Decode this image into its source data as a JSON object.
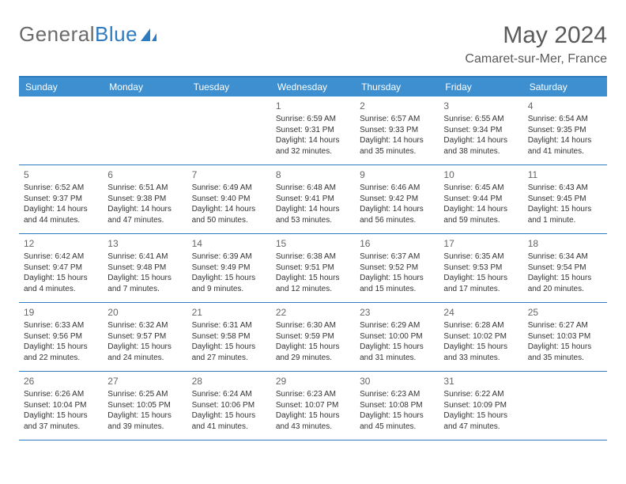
{
  "brand": {
    "part1": "General",
    "part2": "Blue"
  },
  "title": "May 2024",
  "subtitle": "Camaret-sur-Mer, France",
  "accent_color": "#3d8fcf",
  "border_color": "#2f7bbf",
  "day_headers": [
    "Sunday",
    "Monday",
    "Tuesday",
    "Wednesday",
    "Thursday",
    "Friday",
    "Saturday"
  ],
  "weeks": [
    [
      null,
      null,
      null,
      {
        "d": "1",
        "sr": "Sunrise: 6:59 AM",
        "ss": "Sunset: 9:31 PM",
        "dl1": "Daylight: 14 hours",
        "dl2": "and 32 minutes."
      },
      {
        "d": "2",
        "sr": "Sunrise: 6:57 AM",
        "ss": "Sunset: 9:33 PM",
        "dl1": "Daylight: 14 hours",
        "dl2": "and 35 minutes."
      },
      {
        "d": "3",
        "sr": "Sunrise: 6:55 AM",
        "ss": "Sunset: 9:34 PM",
        "dl1": "Daylight: 14 hours",
        "dl2": "and 38 minutes."
      },
      {
        "d": "4",
        "sr": "Sunrise: 6:54 AM",
        "ss": "Sunset: 9:35 PM",
        "dl1": "Daylight: 14 hours",
        "dl2": "and 41 minutes."
      }
    ],
    [
      {
        "d": "5",
        "sr": "Sunrise: 6:52 AM",
        "ss": "Sunset: 9:37 PM",
        "dl1": "Daylight: 14 hours",
        "dl2": "and 44 minutes."
      },
      {
        "d": "6",
        "sr": "Sunrise: 6:51 AM",
        "ss": "Sunset: 9:38 PM",
        "dl1": "Daylight: 14 hours",
        "dl2": "and 47 minutes."
      },
      {
        "d": "7",
        "sr": "Sunrise: 6:49 AM",
        "ss": "Sunset: 9:40 PM",
        "dl1": "Daylight: 14 hours",
        "dl2": "and 50 minutes."
      },
      {
        "d": "8",
        "sr": "Sunrise: 6:48 AM",
        "ss": "Sunset: 9:41 PM",
        "dl1": "Daylight: 14 hours",
        "dl2": "and 53 minutes."
      },
      {
        "d": "9",
        "sr": "Sunrise: 6:46 AM",
        "ss": "Sunset: 9:42 PM",
        "dl1": "Daylight: 14 hours",
        "dl2": "and 56 minutes."
      },
      {
        "d": "10",
        "sr": "Sunrise: 6:45 AM",
        "ss": "Sunset: 9:44 PM",
        "dl1": "Daylight: 14 hours",
        "dl2": "and 59 minutes."
      },
      {
        "d": "11",
        "sr": "Sunrise: 6:43 AM",
        "ss": "Sunset: 9:45 PM",
        "dl1": "Daylight: 15 hours",
        "dl2": "and 1 minute."
      }
    ],
    [
      {
        "d": "12",
        "sr": "Sunrise: 6:42 AM",
        "ss": "Sunset: 9:47 PM",
        "dl1": "Daylight: 15 hours",
        "dl2": "and 4 minutes."
      },
      {
        "d": "13",
        "sr": "Sunrise: 6:41 AM",
        "ss": "Sunset: 9:48 PM",
        "dl1": "Daylight: 15 hours",
        "dl2": "and 7 minutes."
      },
      {
        "d": "14",
        "sr": "Sunrise: 6:39 AM",
        "ss": "Sunset: 9:49 PM",
        "dl1": "Daylight: 15 hours",
        "dl2": "and 9 minutes."
      },
      {
        "d": "15",
        "sr": "Sunrise: 6:38 AM",
        "ss": "Sunset: 9:51 PM",
        "dl1": "Daylight: 15 hours",
        "dl2": "and 12 minutes."
      },
      {
        "d": "16",
        "sr": "Sunrise: 6:37 AM",
        "ss": "Sunset: 9:52 PM",
        "dl1": "Daylight: 15 hours",
        "dl2": "and 15 minutes."
      },
      {
        "d": "17",
        "sr": "Sunrise: 6:35 AM",
        "ss": "Sunset: 9:53 PM",
        "dl1": "Daylight: 15 hours",
        "dl2": "and 17 minutes."
      },
      {
        "d": "18",
        "sr": "Sunrise: 6:34 AM",
        "ss": "Sunset: 9:54 PM",
        "dl1": "Daylight: 15 hours",
        "dl2": "and 20 minutes."
      }
    ],
    [
      {
        "d": "19",
        "sr": "Sunrise: 6:33 AM",
        "ss": "Sunset: 9:56 PM",
        "dl1": "Daylight: 15 hours",
        "dl2": "and 22 minutes."
      },
      {
        "d": "20",
        "sr": "Sunrise: 6:32 AM",
        "ss": "Sunset: 9:57 PM",
        "dl1": "Daylight: 15 hours",
        "dl2": "and 24 minutes."
      },
      {
        "d": "21",
        "sr": "Sunrise: 6:31 AM",
        "ss": "Sunset: 9:58 PM",
        "dl1": "Daylight: 15 hours",
        "dl2": "and 27 minutes."
      },
      {
        "d": "22",
        "sr": "Sunrise: 6:30 AM",
        "ss": "Sunset: 9:59 PM",
        "dl1": "Daylight: 15 hours",
        "dl2": "and 29 minutes."
      },
      {
        "d": "23",
        "sr": "Sunrise: 6:29 AM",
        "ss": "Sunset: 10:00 PM",
        "dl1": "Daylight: 15 hours",
        "dl2": "and 31 minutes."
      },
      {
        "d": "24",
        "sr": "Sunrise: 6:28 AM",
        "ss": "Sunset: 10:02 PM",
        "dl1": "Daylight: 15 hours",
        "dl2": "and 33 minutes."
      },
      {
        "d": "25",
        "sr": "Sunrise: 6:27 AM",
        "ss": "Sunset: 10:03 PM",
        "dl1": "Daylight: 15 hours",
        "dl2": "and 35 minutes."
      }
    ],
    [
      {
        "d": "26",
        "sr": "Sunrise: 6:26 AM",
        "ss": "Sunset: 10:04 PM",
        "dl1": "Daylight: 15 hours",
        "dl2": "and 37 minutes."
      },
      {
        "d": "27",
        "sr": "Sunrise: 6:25 AM",
        "ss": "Sunset: 10:05 PM",
        "dl1": "Daylight: 15 hours",
        "dl2": "and 39 minutes."
      },
      {
        "d": "28",
        "sr": "Sunrise: 6:24 AM",
        "ss": "Sunset: 10:06 PM",
        "dl1": "Daylight: 15 hours",
        "dl2": "and 41 minutes."
      },
      {
        "d": "29",
        "sr": "Sunrise: 6:23 AM",
        "ss": "Sunset: 10:07 PM",
        "dl1": "Daylight: 15 hours",
        "dl2": "and 43 minutes."
      },
      {
        "d": "30",
        "sr": "Sunrise: 6:23 AM",
        "ss": "Sunset: 10:08 PM",
        "dl1": "Daylight: 15 hours",
        "dl2": "and 45 minutes."
      },
      {
        "d": "31",
        "sr": "Sunrise: 6:22 AM",
        "ss": "Sunset: 10:09 PM",
        "dl1": "Daylight: 15 hours",
        "dl2": "and 47 minutes."
      },
      null
    ]
  ]
}
